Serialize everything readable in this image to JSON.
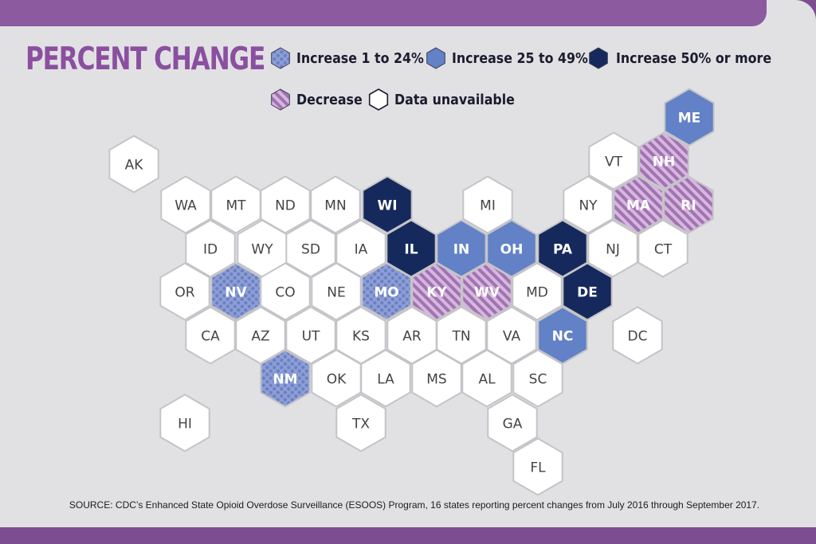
{
  "title": "PERCENT CHANGE",
  "legend": [
    {
      "key": "inc1",
      "label": "Increase 1 to 24%"
    },
    {
      "key": "inc25",
      "label": "Increase 25 to 49%"
    },
    {
      "key": "inc50",
      "label": "Increase 50% or more"
    },
    {
      "key": "dec",
      "label": "Decrease"
    },
    {
      "key": "na",
      "label": "Data unavailable"
    }
  ],
  "colors": {
    "inc1": "#8c9fd6",
    "inc1_dot": "#6e7fc2",
    "inc25": "#6281c6",
    "inc50": "#15295c",
    "dec_base": "#d7b7de",
    "dec_stripe": "#a073b2",
    "na": "#ffffff",
    "title": "#8b4fa0"
  },
  "states": [
    {
      "abbr": "AK",
      "category": "na"
    },
    {
      "abbr": "ME",
      "category": "inc25"
    },
    {
      "abbr": "VT",
      "category": "na"
    },
    {
      "abbr": "NH",
      "category": "dec"
    },
    {
      "abbr": "WA",
      "category": "na"
    },
    {
      "abbr": "MT",
      "category": "na"
    },
    {
      "abbr": "ND",
      "category": "na"
    },
    {
      "abbr": "MN",
      "category": "na"
    },
    {
      "abbr": "WI",
      "category": "inc50"
    },
    {
      "abbr": "MI",
      "category": "na"
    },
    {
      "abbr": "NY",
      "category": "na"
    },
    {
      "abbr": "MA",
      "category": "dec"
    },
    {
      "abbr": "RI",
      "category": "dec"
    },
    {
      "abbr": "ID",
      "category": "na"
    },
    {
      "abbr": "WY",
      "category": "na"
    },
    {
      "abbr": "SD",
      "category": "na"
    },
    {
      "abbr": "IA",
      "category": "na"
    },
    {
      "abbr": "IL",
      "category": "inc50"
    },
    {
      "abbr": "IN",
      "category": "inc25"
    },
    {
      "abbr": "OH",
      "category": "inc25"
    },
    {
      "abbr": "PA",
      "category": "inc50"
    },
    {
      "abbr": "NJ",
      "category": "na"
    },
    {
      "abbr": "CT",
      "category": "na"
    },
    {
      "abbr": "OR",
      "category": "na"
    },
    {
      "abbr": "NV",
      "category": "inc1"
    },
    {
      "abbr": "CO",
      "category": "na"
    },
    {
      "abbr": "NE",
      "category": "na"
    },
    {
      "abbr": "MO",
      "category": "inc1"
    },
    {
      "abbr": "KY",
      "category": "dec"
    },
    {
      "abbr": "WV",
      "category": "dec"
    },
    {
      "abbr": "MD",
      "category": "na"
    },
    {
      "abbr": "DE",
      "category": "inc50"
    },
    {
      "abbr": "CA",
      "category": "na"
    },
    {
      "abbr": "AZ",
      "category": "na"
    },
    {
      "abbr": "UT",
      "category": "na"
    },
    {
      "abbr": "KS",
      "category": "na"
    },
    {
      "abbr": "AR",
      "category": "na"
    },
    {
      "abbr": "TN",
      "category": "na"
    },
    {
      "abbr": "VA",
      "category": "na"
    },
    {
      "abbr": "NC",
      "category": "inc25"
    },
    {
      "abbr": "DC",
      "category": "na"
    },
    {
      "abbr": "NM",
      "category": "inc1"
    },
    {
      "abbr": "OK",
      "category": "na"
    },
    {
      "abbr": "LA",
      "category": "na"
    },
    {
      "abbr": "MS",
      "category": "na"
    },
    {
      "abbr": "AL",
      "category": "na"
    },
    {
      "abbr": "SC",
      "category": "na"
    },
    {
      "abbr": "HI",
      "category": "na"
    },
    {
      "abbr": "TX",
      "category": "na"
    },
    {
      "abbr": "GA",
      "category": "na"
    },
    {
      "abbr": "FL",
      "category": "na"
    }
  ],
  "source": "SOURCE: CDC’s Enhanced State Opioid Overdose Surveillance (ESOOS) Program, 16 states reporting percent changes from July 2016 through September 2017."
}
